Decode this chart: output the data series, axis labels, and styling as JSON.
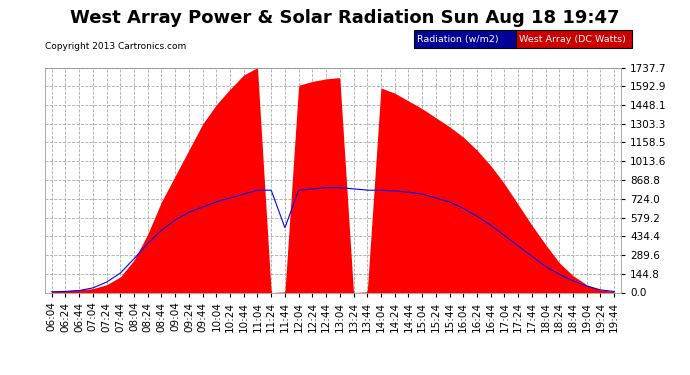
{
  "title": "West Array Power & Solar Radiation Sun Aug 18 19:47",
  "copyright": "Copyright 2013 Cartronics.com",
  "legend_labels": [
    "Radiation (w/m2)",
    "West Array (DC Watts)"
  ],
  "legend_colors_bg": [
    "#0000cc",
    "#cc0000"
  ],
  "ylabel_right_ticks": [
    0.0,
    144.8,
    289.6,
    434.4,
    579.2,
    724.0,
    868.8,
    1013.6,
    1158.5,
    1303.3,
    1448.1,
    1592.9,
    1737.7
  ],
  "ymax": 1737.7,
  "ymin": 0.0,
  "fig_bg_color": "#ffffff",
  "plot_bg_color": "#ffffff",
  "grid_color": "#aaaaaa",
  "title_color": "#000000",
  "x_tick_labels": [
    "06:04",
    "06:24",
    "06:44",
    "07:04",
    "07:24",
    "07:44",
    "08:04",
    "08:24",
    "08:44",
    "09:04",
    "09:24",
    "09:44",
    "10:04",
    "10:24",
    "10:44",
    "11:04",
    "11:24",
    "11:44",
    "12:04",
    "12:24",
    "12:44",
    "13:04",
    "13:24",
    "13:44",
    "14:04",
    "14:24",
    "14:44",
    "15:04",
    "15:24",
    "15:44",
    "16:04",
    "16:24",
    "16:44",
    "17:04",
    "17:24",
    "17:44",
    "18:04",
    "18:24",
    "18:44",
    "19:04",
    "19:24",
    "19:44"
  ],
  "red_area_values": [
    10,
    15,
    20,
    30,
    60,
    120,
    250,
    450,
    700,
    900,
    1100,
    1300,
    1450,
    1570,
    1680,
    1737,
    0,
    5,
    1600,
    1630,
    1650,
    1660,
    0,
    5,
    1580,
    1540,
    1480,
    1420,
    1350,
    1280,
    1200,
    1100,
    980,
    840,
    680,
    520,
    370,
    230,
    130,
    60,
    20,
    8
  ],
  "blue_line_values": [
    5,
    8,
    15,
    35,
    80,
    150,
    260,
    380,
    480,
    560,
    620,
    660,
    700,
    730,
    760,
    790,
    790,
    500,
    790,
    800,
    810,
    810,
    800,
    790,
    790,
    785,
    775,
    760,
    730,
    700,
    650,
    590,
    520,
    440,
    360,
    280,
    200,
    140,
    90,
    50,
    20,
    8
  ],
  "title_fontsize": 13,
  "tick_fontsize": 7.5,
  "red_color": "#ff0000",
  "blue_color": "#0000ff"
}
